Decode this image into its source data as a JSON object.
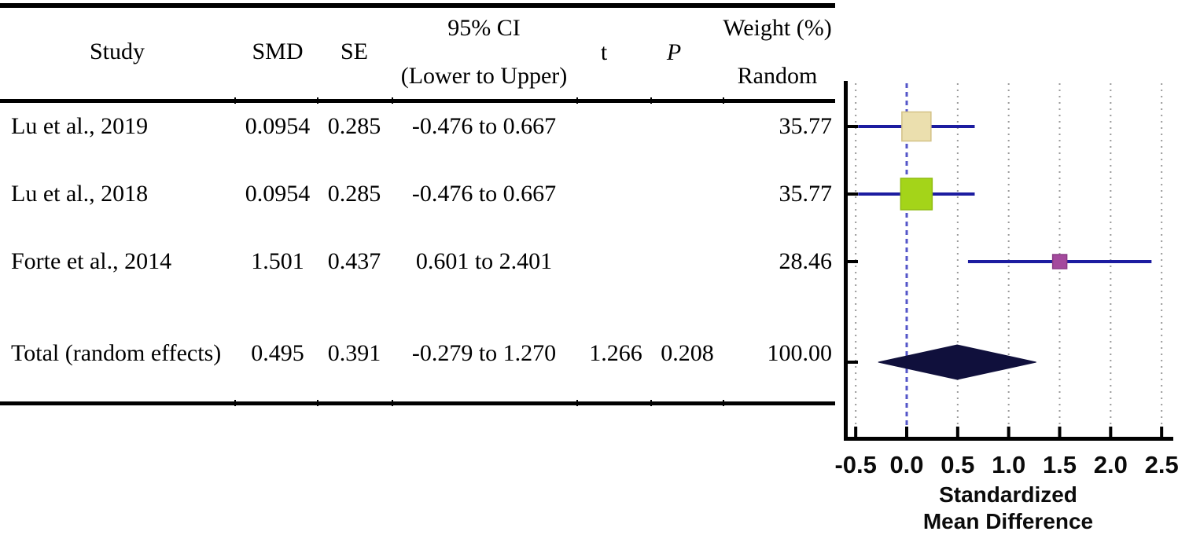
{
  "table": {
    "headers": {
      "study": "Study",
      "smd": "SMD",
      "se": "SE",
      "ci_line1": "95% CI",
      "ci_line2": "(Lower to Upper)",
      "t": "t",
      "p": "P",
      "weight_line1": "Weight (%)",
      "weight_line2": "Random"
    },
    "rows": [
      {
        "study": "Lu et al., 2019",
        "smd": "0.0954",
        "se": "0.285",
        "ci": "-0.476 to 0.667",
        "t": "",
        "p": "",
        "weight": "35.77"
      },
      {
        "study": "Lu et al., 2018",
        "smd": "0.0954",
        "se": "0.285",
        "ci": "-0.476 to 0.667",
        "t": "",
        "p": "",
        "weight": "35.77"
      },
      {
        "study": "Forte et al., 2014",
        "smd": "1.501",
        "se": "0.437",
        "ci": "0.601 to 2.401",
        "t": "",
        "p": "",
        "weight": "28.46"
      },
      {
        "study": "Total (random effects)",
        "smd": "0.495",
        "se": "0.391",
        "ci": "-0.279 to 1.270",
        "t": "1.266",
        "p": "0.208",
        "weight": "100.00"
      }
    ]
  },
  "chart_data": {
    "type": "scatter",
    "subtype": "forest-plot",
    "xlabel": "Standardized Mean Difference",
    "xlabel_lines": [
      "Standardized",
      "Mean Difference"
    ],
    "x_axis": {
      "range": [
        -0.5,
        2.5
      ],
      "ticks": [
        -0.5,
        0.0,
        0.5,
        1.0,
        1.5,
        2.0,
        2.5
      ],
      "tick_labels": [
        "-0.5",
        "0.0",
        "0.5",
        "1.0",
        "1.5",
        "2.0",
        "2.5"
      ],
      "reference_line": 0.0,
      "grid": true
    },
    "studies": [
      {
        "name": "Lu et al., 2019",
        "smd": 0.0954,
        "ci_lower": -0.476,
        "ci_upper": 0.667,
        "weight": 35.77,
        "marker_color": "#ebdfae",
        "marker_border": "#d3c186",
        "marker_size": 37
      },
      {
        "name": "Lu et al., 2018",
        "smd": 0.0954,
        "ci_lower": -0.476,
        "ci_upper": 0.667,
        "weight": 35.77,
        "marker_color": "#a4d419",
        "marker_border": "#8fbc10",
        "marker_size": 40
      },
      {
        "name": "Forte et al., 2014",
        "smd": 1.501,
        "ci_lower": 0.601,
        "ci_upper": 2.401,
        "weight": 28.46,
        "marker_color": "#a44a9d",
        "marker_border": "#8a3c85",
        "marker_size": 18
      }
    ],
    "total": {
      "name": "Total (random effects)",
      "smd": 0.495,
      "ci_lower": -0.279,
      "ci_upper": 1.27,
      "weight": 100.0
    },
    "colors": {
      "ci_line": "#1c1ca0",
      "reference_line": "#5456c8",
      "gridline": "#9a9a9a",
      "diamond": "#10103c",
      "axis": "#000000"
    }
  }
}
